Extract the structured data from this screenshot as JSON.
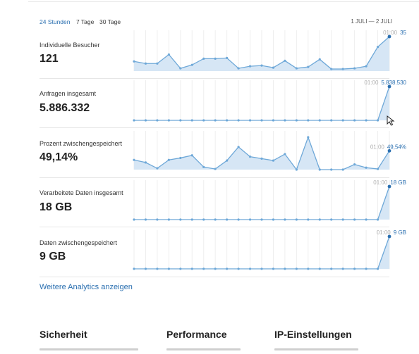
{
  "tabs": [
    {
      "label": "24 Stunden",
      "active": true
    },
    {
      "label": "7 Tage",
      "active": false
    },
    {
      "label": "30 Tage",
      "active": false
    }
  ],
  "date_range": "1 JULI — 2 JULI",
  "metrics": [
    {
      "label": "Individuelle Besucher",
      "value": "121",
      "time_label": "01:00",
      "last_value": "35"
    },
    {
      "label": "Anfragen insgesamt",
      "value": "5.886.332",
      "time_label": "01:00",
      "last_value": "5.838.530"
    },
    {
      "label": "Prozent zwischengespeichert",
      "value": "49,14%",
      "time_label": "01:00",
      "last_value": "49,54%"
    },
    {
      "label": "Verarbeitete Daten insgesamt",
      "value": "18 GB",
      "time_label": "01:00",
      "last_value": "18 GB"
    },
    {
      "label": "Daten zwischengespeichert",
      "value": "9 GB",
      "time_label": "01:00",
      "last_value": "9 GB"
    }
  ],
  "sparklines": [
    [
      0.28,
      0.22,
      0.22,
      0.48,
      0.08,
      0.18,
      0.36,
      0.36,
      0.38,
      0.08,
      0.14,
      0.16,
      0.1,
      0.3,
      0.08,
      0.12,
      0.34,
      0.06,
      0.06,
      0.08,
      0.14,
      0.7,
      1.0
    ],
    [
      0.0,
      0.0,
      0.0,
      0.0,
      0.0,
      0.0,
      0.0,
      0.0,
      0.0,
      0.0,
      0.0,
      0.0,
      0.0,
      0.0,
      0.0,
      0.0,
      0.0,
      0.0,
      0.0,
      0.0,
      0.0,
      0.0,
      1.0
    ],
    [
      0.3,
      0.22,
      0.04,
      0.3,
      0.36,
      0.44,
      0.08,
      0.02,
      0.28,
      0.7,
      0.4,
      0.34,
      0.28,
      0.48,
      0.0,
      1.0,
      0.0,
      0.0,
      0.0,
      0.16,
      0.06,
      0.02,
      0.58
    ],
    [
      0.0,
      0.0,
      0.0,
      0.0,
      0.0,
      0.0,
      0.0,
      0.0,
      0.0,
      0.0,
      0.0,
      0.0,
      0.0,
      0.0,
      0.0,
      0.0,
      0.0,
      0.0,
      0.0,
      0.0,
      0.0,
      0.0,
      1.0
    ],
    [
      0.0,
      0.0,
      0.0,
      0.0,
      0.0,
      0.0,
      0.0,
      0.0,
      0.0,
      0.0,
      0.0,
      0.0,
      0.0,
      0.0,
      0.0,
      0.0,
      0.0,
      0.0,
      0.0,
      0.0,
      0.0,
      0.0,
      1.0
    ]
  ],
  "more_link": "Weitere Analytics anzeigen",
  "sections": [
    "Sicherheit",
    "Performance",
    "IP-Einstellungen"
  ],
  "colors": {
    "accent": "#2a6fb0",
    "line": "#6ea8d8",
    "fill": "#d6e6f5",
    "dot": "#6ea8d8"
  }
}
